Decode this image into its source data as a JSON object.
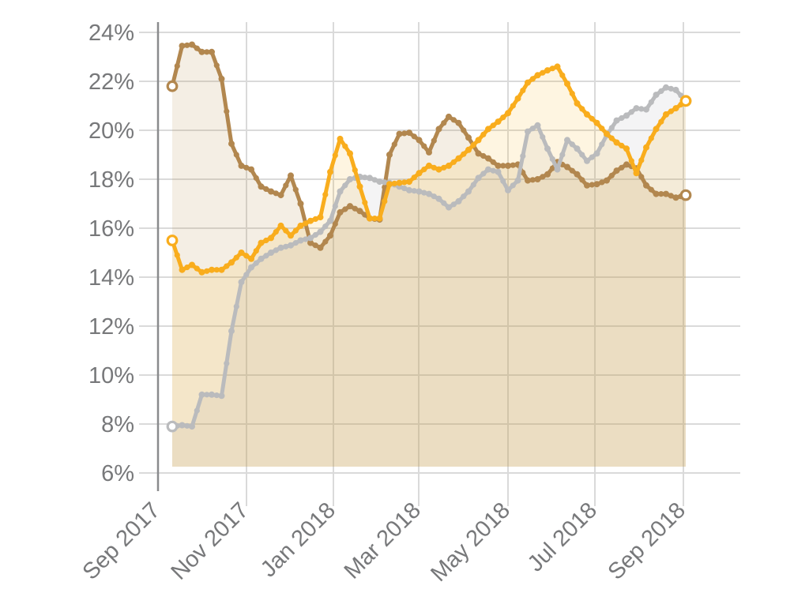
{
  "chart_data": {
    "type": "line",
    "title": "",
    "xlabel": "",
    "ylabel": "",
    "grid": true,
    "legend": "none",
    "x_axis": {
      "tick_labels": [
        "Sep 2017",
        "Nov 2017",
        "Jan 2018",
        "Mar 2018",
        "May 2018",
        "Jul 2018",
        "Sep 2018"
      ]
    },
    "y_axis": {
      "tick_labels": [
        "24%",
        "22%",
        "20%",
        "18%",
        "16%",
        "14%",
        "12%",
        "10%",
        "8%",
        "6%"
      ],
      "tick_values": [
        24,
        22,
        20,
        18,
        16,
        14,
        12,
        10,
        8,
        6
      ],
      "range": [
        6,
        24
      ],
      "unit": "%"
    },
    "x_sampling": "evenly spaced points (approx. weekly) from mid-Sep 2017 to early Sep 2018",
    "series": [
      {
        "name": "brown-series",
        "color": "#B2874F",
        "fill_color": "rgba(178,132,64,0.14)",
        "values": [
          21.8,
          23.45,
          23.5,
          23.2,
          23.2,
          22.1,
          19.45,
          18.55,
          18.4,
          17.7,
          17.5,
          17.35,
          18.15,
          17.0,
          15.4,
          15.2,
          15.7,
          16.65,
          16.9,
          16.7,
          16.4,
          16.35,
          19.0,
          19.85,
          19.9,
          19.6,
          19.1,
          20.05,
          20.55,
          20.3,
          19.7,
          19.05,
          18.85,
          18.55,
          18.55,
          18.6,
          17.95,
          18.0,
          18.2,
          18.7,
          18.5,
          18.2,
          17.75,
          17.8,
          17.95,
          18.35,
          18.6,
          18.45,
          17.75,
          17.4,
          17.4,
          17.25,
          17.35
        ]
      },
      {
        "name": "gray-series",
        "color": "#BABBBD",
        "fill_color": "rgba(150,152,158,0.10)",
        "values": [
          7.9,
          7.95,
          7.9,
          9.2,
          9.2,
          9.15,
          11.8,
          13.8,
          14.4,
          14.75,
          15.0,
          15.2,
          15.3,
          15.5,
          15.6,
          15.85,
          16.3,
          17.5,
          18.0,
          18.1,
          18.05,
          17.9,
          17.85,
          17.7,
          17.55,
          17.5,
          17.4,
          17.2,
          16.85,
          17.1,
          17.5,
          18.05,
          18.4,
          18.3,
          17.55,
          17.95,
          19.95,
          20.2,
          19.25,
          18.4,
          19.6,
          19.25,
          18.75,
          19.05,
          19.8,
          20.4,
          20.6,
          20.9,
          20.85,
          21.45,
          21.75,
          21.65,
          21.2
        ]
      },
      {
        "name": "gold-series",
        "color": "#F9AD1D",
        "fill_color": "rgba(249,174,26,0.13)",
        "values": [
          15.5,
          14.3,
          14.5,
          14.2,
          14.3,
          14.3,
          14.6,
          15.0,
          14.75,
          15.4,
          15.6,
          16.1,
          15.7,
          16.1,
          16.3,
          16.45,
          18.3,
          19.65,
          19.05,
          17.7,
          16.4,
          16.4,
          17.8,
          17.85,
          17.9,
          18.25,
          18.55,
          18.4,
          18.55,
          18.85,
          19.2,
          19.6,
          20.05,
          20.35,
          20.7,
          21.3,
          21.95,
          22.25,
          22.45,
          22.6,
          21.9,
          21.1,
          20.65,
          20.3,
          19.85,
          19.5,
          19.25,
          18.25,
          19.3,
          20.05,
          20.65,
          20.9,
          21.2
        ]
      }
    ],
    "style": {
      "endpoint_marker": "open-circle",
      "point_marker": "filled-dot",
      "axis_label_color": "#77787A",
      "grid_color": "#DADADA",
      "axis_line_color": "#8A8B8D",
      "background": "#FFFFFF"
    }
  }
}
